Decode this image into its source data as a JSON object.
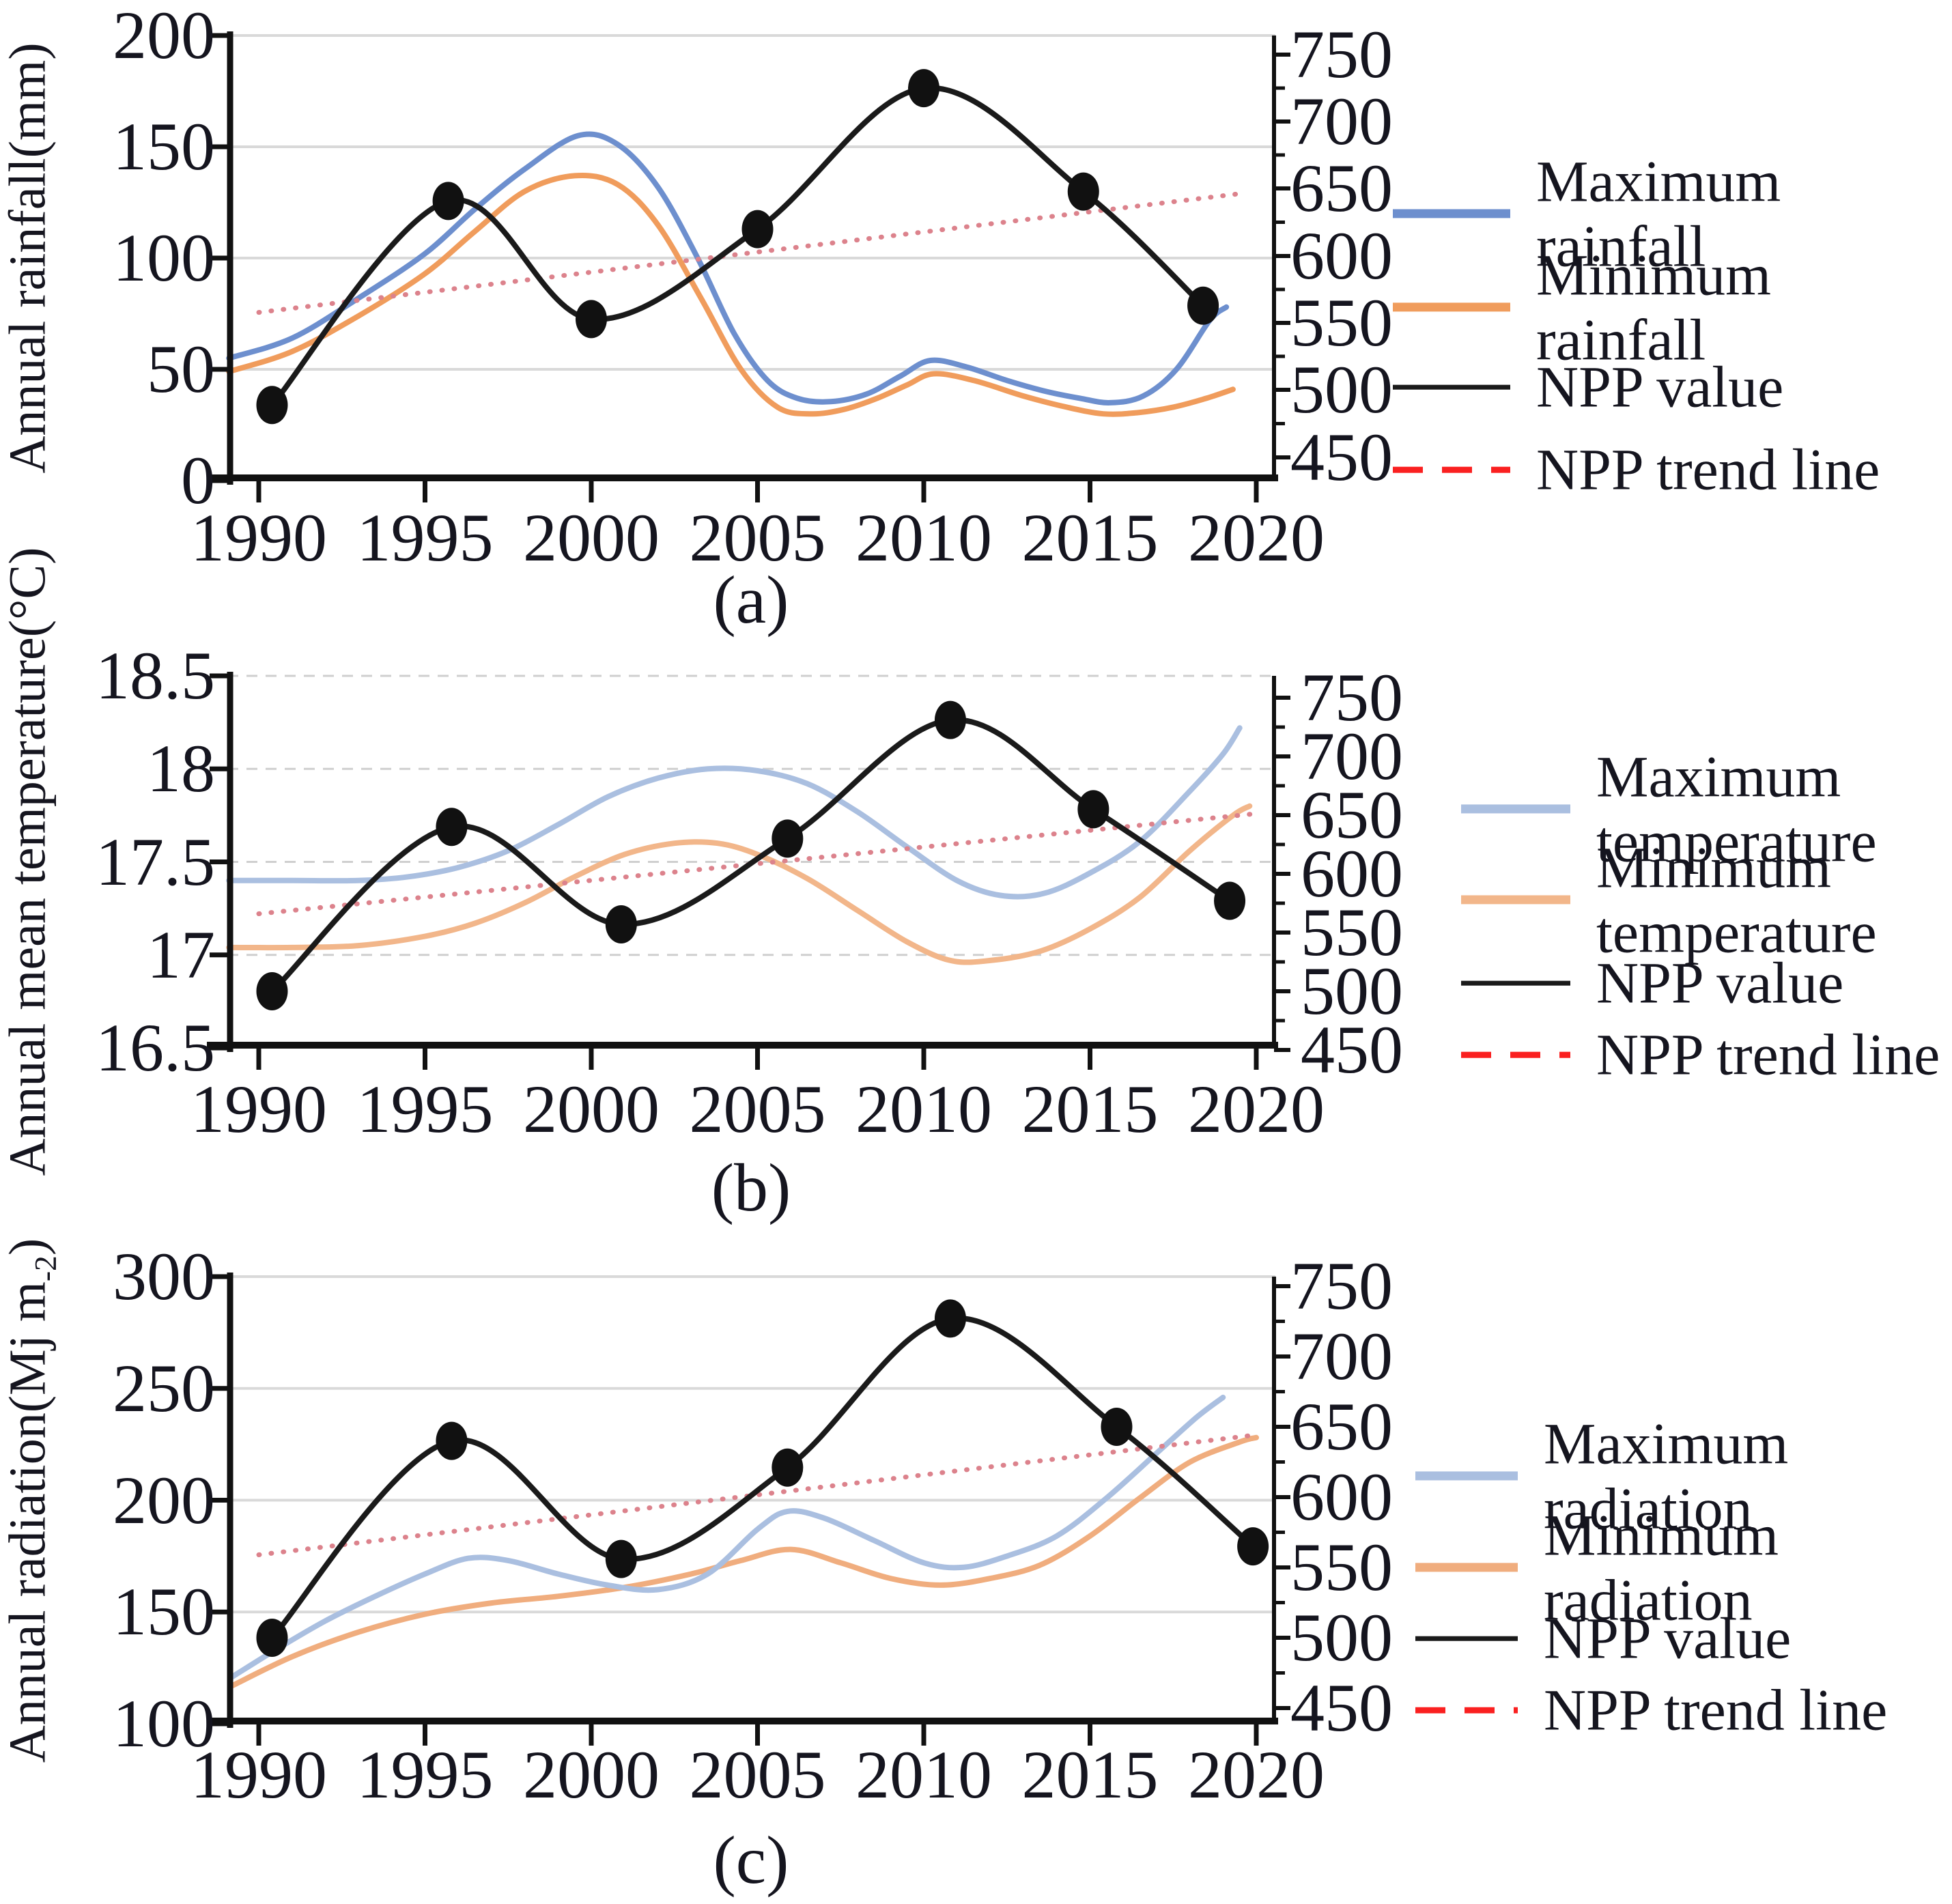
{
  "chart_data": [
    {
      "id": "a",
      "type": "line",
      "caption": "(a)",
      "ylabel": {
        "prefix": "Annual rainfall(mm)",
        "sub": "",
        "suffix": ""
      },
      "x_ticks": [
        1990,
        1995,
        2000,
        2005,
        2010,
        2015,
        2020
      ],
      "xlim": [
        1989.0,
        2020.6
      ],
      "y_left_ticks": [
        200,
        150,
        100,
        50,
        0
      ],
      "ylim_left": [
        0,
        200
      ],
      "y_right_ticks": [
        750,
        700,
        650,
        600,
        550,
        500,
        450
      ],
      "ylim_right": [
        450,
        750
      ],
      "grid": "solid",
      "legend": [
        {
          "label": "Maximum rainfall",
          "color": "#6d8fce",
          "dash": false,
          "thick": 13
        },
        {
          "label": "Minimum rainfall",
          "color": "#f09c5c",
          "dash": false,
          "thick": 13
        },
        {
          "label": "NPP value",
          "color": "#1a1a1a",
          "dash": false,
          "thick": 7
        },
        {
          "label": "NPP trend line",
          "color": "#fa2020",
          "dash": true,
          "thick": 9
        }
      ],
      "series": [
        {
          "name": "Minimum rainfall",
          "axis": "left",
          "color": "#f09c5c",
          "width": 8,
          "style": "solid",
          "x": [
            1989.1,
            1991,
            1993,
            1995,
            1996.5,
            1998,
            1999.5,
            2000.8,
            2002,
            2003.3,
            2004.5,
            2005.6,
            2006.6,
            2007.6,
            2008.6,
            2009.5,
            2010.3,
            2011.5,
            2013,
            2014.3,
            2015.4,
            2016.4,
            2017.5,
            2018.5,
            2019.3
          ],
          "y": [
            49,
            58,
            74,
            93,
            112,
            130,
            137,
            133,
            115,
            82,
            50,
            33,
            30,
            32,
            37,
            43,
            48,
            45,
            38,
            33,
            30,
            30.5,
            33,
            37,
            41
          ]
        },
        {
          "name": "Maximum rainfall",
          "axis": "left",
          "color": "#6d8fce",
          "width": 8,
          "style": "solid",
          "x": [
            1989.1,
            1991,
            1993,
            1995,
            1996.5,
            1998,
            1999.6,
            2000.8,
            2002,
            2003.2,
            2004.3,
            2005.3,
            2006.2,
            2007.2,
            2008.3,
            2009.3,
            2010.2,
            2011.3,
            2012.5,
            2013.7,
            2014.7,
            2015.6,
            2016.6,
            2017.6,
            2018.6,
            2019.1
          ],
          "y": [
            55,
            64,
            82,
            102,
            122,
            140,
            155,
            151,
            132,
            100,
            66,
            45,
            37,
            35.5,
            39,
            47,
            54,
            51,
            45,
            40,
            37,
            35,
            38,
            50,
            72,
            78
          ]
        },
        {
          "name": "NPP trend line",
          "axis": "right",
          "color": "#dc828c",
          "width": 7,
          "style": "dotted",
          "x": [
            1990,
            2019.7
          ],
          "y": [
            558,
            647
          ]
        },
        {
          "name": "NPP value",
          "axis": "right",
          "color": "#1a1a1a",
          "width": 8,
          "style": "solid",
          "markers": true,
          "x": [
            1990.4,
            1995.7,
            2000.0,
            2005.0,
            2010.0,
            2014.8,
            2018.4
          ],
          "y": [
            489,
            641,
            553,
            620,
            725,
            648,
            563
          ]
        }
      ]
    },
    {
      "id": "b",
      "type": "line",
      "caption": "(b)",
      "ylabel": {
        "prefix": "Annual mean temperature(°C)",
        "sub": "",
        "suffix": ""
      },
      "x_ticks": [
        1990,
        1995,
        2000,
        2005,
        2010,
        2015,
        2020
      ],
      "xlim": [
        1989.0,
        2020.6
      ],
      "y_left_ticks": [
        18.5,
        18,
        17.5,
        17,
        16.5
      ],
      "ylim_left": [
        16.5,
        18.5
      ],
      "y_right_ticks": [
        750,
        700,
        650,
        600,
        550,
        500,
        450
      ],
      "ylim_right": [
        450,
        750
      ],
      "grid": "dashed",
      "legend": [
        {
          "label": "Maximum temperature",
          "color": "#aabfe0",
          "dash": false,
          "thick": 13
        },
        {
          "label": "Minimum temperature",
          "color": "#f2b68a",
          "dash": false,
          "thick": 13
        },
        {
          "label": "NPP value",
          "color": "#1a1a1a",
          "dash": false,
          "thick": 7
        },
        {
          "label": "NPP trend line",
          "color": "#fa2020",
          "dash": true,
          "thick": 9
        }
      ],
      "series": [
        {
          "name": "Minimum temperature",
          "axis": "left",
          "color": "#f2b68a",
          "width": 8,
          "style": "solid",
          "x": [
            1989.1,
            1991,
            1993,
            1995,
            1996.5,
            1998,
            1999.5,
            2001,
            2002.5,
            2003.8,
            2005,
            2006.5,
            2008,
            2009.5,
            2010.8,
            2012,
            2013.5,
            2015,
            2016.5,
            2018,
            2019.3,
            2019.8
          ],
          "y": [
            17.04,
            17.04,
            17.05,
            17.1,
            17.17,
            17.28,
            17.42,
            17.54,
            17.6,
            17.6,
            17.54,
            17.41,
            17.24,
            17.07,
            16.97,
            16.97,
            17.02,
            17.14,
            17.31,
            17.56,
            17.75,
            17.8
          ]
        },
        {
          "name": "Maximum temperature",
          "axis": "left",
          "color": "#aabfe0",
          "width": 8,
          "style": "solid",
          "x": [
            1989.1,
            1991,
            1993,
            1994.5,
            1996,
            1997.5,
            1999,
            2000.5,
            2002,
            2003.5,
            2005,
            2006.5,
            2008,
            2009.5,
            2011,
            2012.3,
            2013.6,
            2015,
            2016.5,
            2018,
            2019,
            2019.5
          ],
          "y": [
            17.4,
            17.4,
            17.4,
            17.42,
            17.47,
            17.56,
            17.7,
            17.85,
            17.95,
            18.0,
            17.99,
            17.92,
            17.77,
            17.58,
            17.4,
            17.32,
            17.33,
            17.44,
            17.61,
            17.88,
            18.08,
            18.22
          ]
        },
        {
          "name": "NPP trend line",
          "axis": "right",
          "color": "#dc828c",
          "width": 7,
          "style": "dotted",
          "x": [
            1990,
            2019.9
          ],
          "y": [
            566,
            651
          ]
        },
        {
          "name": "NPP value",
          "axis": "right",
          "color": "#1a1a1a",
          "width": 8,
          "style": "solid",
          "markers": true,
          "x": [
            1990.4,
            1995.8,
            2000.9,
            2005.9,
            2010.8,
            2015.1,
            2019.2
          ],
          "y": [
            500,
            640,
            557,
            630,
            731,
            655,
            577
          ]
        }
      ]
    },
    {
      "id": "c",
      "type": "line",
      "caption": "(c)",
      "ylabel": {
        "prefix": "Annual radiation(Mj m",
        "sub": "-2",
        "suffix": ")"
      },
      "x_ticks": [
        1990,
        1995,
        2000,
        2005,
        2010,
        2015,
        2020
      ],
      "xlim": [
        1989.0,
        2020.6
      ],
      "y_left_ticks": [
        300,
        250,
        200,
        150,
        100
      ],
      "ylim_left": [
        100,
        300
      ],
      "y_right_ticks": [
        750,
        700,
        650,
        600,
        550,
        500,
        450
      ],
      "ylim_right": [
        450,
        750
      ],
      "grid": "solid",
      "legend": [
        {
          "label": "Maximum radiation",
          "color": "#aabfe0",
          "dash": false,
          "thick": 13
        },
        {
          "label": "Minimum radiation",
          "color": "#f0ad7e",
          "dash": false,
          "thick": 13
        },
        {
          "label": "NPP value",
          "color": "#1a1a1a",
          "dash": false,
          "thick": 7
        },
        {
          "label": "NPP trend line",
          "color": "#fa2020",
          "dash": true,
          "thick": 9
        }
      ],
      "series": [
        {
          "name": "Minimum radiation",
          "axis": "left",
          "color": "#f0ad7e",
          "width": 8,
          "style": "solid",
          "x": [
            1989.2,
            1991,
            1993,
            1995,
            1997,
            1999,
            2001,
            2003,
            2004.5,
            2006,
            2007.5,
            2009,
            2010.5,
            2012,
            2013.5,
            2015,
            2016.5,
            2018,
            2019.5,
            2020.0
          ],
          "y": [
            117,
            130,
            141,
            149,
            154,
            157,
            161,
            167,
            173,
            178,
            172,
            165,
            162,
            165,
            171,
            184,
            201,
            217,
            226,
            228
          ]
        },
        {
          "name": "Maximum radiation",
          "axis": "left",
          "color": "#aabfe0",
          "width": 8,
          "style": "solid",
          "x": [
            1989.2,
            1990.5,
            1992,
            1993.5,
            1995,
            1996.3,
            1997.5,
            1999,
            2000.5,
            2002,
            2003.5,
            2005,
            2005.9,
            2007,
            2008.5,
            2010,
            2011.2,
            2012.5,
            2014,
            2015.5,
            2017,
            2018.2,
            2019.0
          ],
          "y": [
            121,
            133,
            146,
            157,
            167,
            174,
            173,
            167,
            162,
            160,
            167,
            187,
            195,
            192,
            182,
            172,
            170,
            175,
            184,
            201,
            221,
            237,
            246
          ]
        },
        {
          "name": "NPP trend line",
          "axis": "right",
          "color": "#dc828c",
          "width": 7,
          "style": "dotted",
          "x": [
            1990,
            2019.9
          ],
          "y": [
            559,
            644
          ]
        },
        {
          "name": "NPP value",
          "axis": "right",
          "color": "#1a1a1a",
          "width": 8,
          "style": "solid",
          "markers": true,
          "x": [
            1990.4,
            1995.8,
            2000.9,
            2005.9,
            2010.8,
            2015.8,
            2019.9
          ],
          "y": [
            500,
            640,
            556,
            621,
            727,
            650,
            565
          ]
        }
      ]
    }
  ],
  "colors": {
    "grid": "#d9d9d9",
    "grid_dashed": "#cfcfcf",
    "axis": "#111111",
    "text": "#15151f",
    "marker": "#111111"
  }
}
